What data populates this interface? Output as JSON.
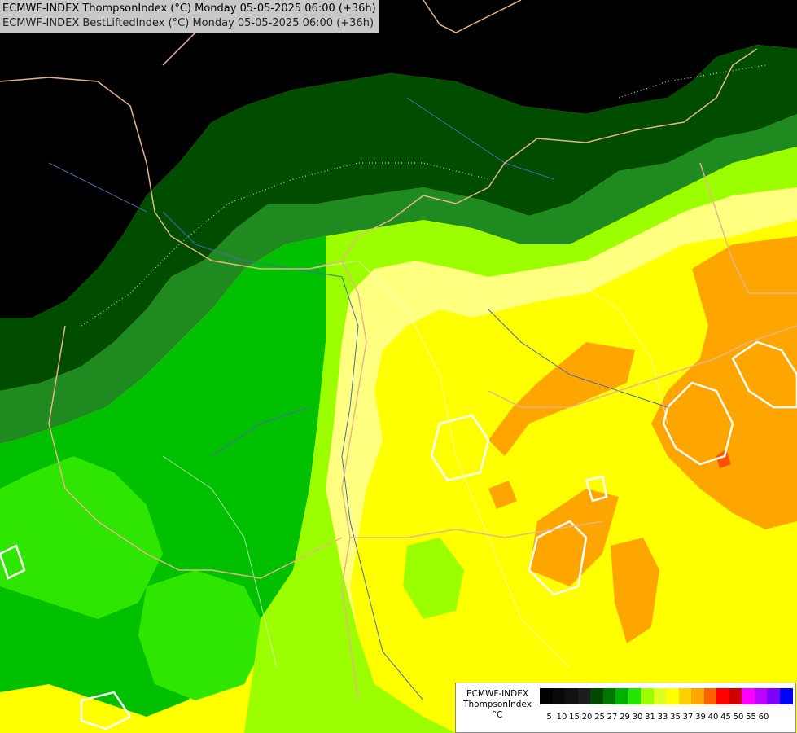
{
  "title": {
    "line1": "ECMWF-INDEX ThompsonIndex (°C) Monday 05-05-2025 06:00 (+36h)",
    "line2": "ECMWF-INDEX BestLiftedIndex (°C) Monday 05-05-2025 06:00 (+36h)"
  },
  "legend": {
    "model": "ECMWF-INDEX",
    "parameter": "ThompsonIndex",
    "unit": "°C",
    "ticks": [
      "5",
      "10",
      "15",
      "20",
      "25",
      "27",
      "29",
      "30",
      "31",
      "33",
      "35",
      "37",
      "39",
      "40",
      "45",
      "50",
      "55",
      "60"
    ],
    "colors": [
      "#000000",
      "#0a0a0a",
      "#111111",
      "#1c1c1c",
      "#004a00",
      "#007800",
      "#00b000",
      "#22e600",
      "#9cff00",
      "#ddff22",
      "#ffff00",
      "#ffd000",
      "#ffa500",
      "#ff6000",
      "#ff0000",
      "#d00000",
      "#ff00ff",
      "#c000ff",
      "#8000ff",
      "#0000ff"
    ]
  },
  "map": {
    "fill_colors": {
      "black": "#000000",
      "dark_green": "#004d00",
      "mid_green": "#1f8a1f",
      "green": "#00c000",
      "bright_green": "#2ee600",
      "lime": "#9cff00",
      "pale_yellow": "#ffff80",
      "yellow": "#ffff00",
      "orange": "#ffa500",
      "red_orange": "#ff5000"
    },
    "border_color": "#e6b48c",
    "river_color": "#4a6ab0",
    "contour_color": "#ffffff"
  }
}
